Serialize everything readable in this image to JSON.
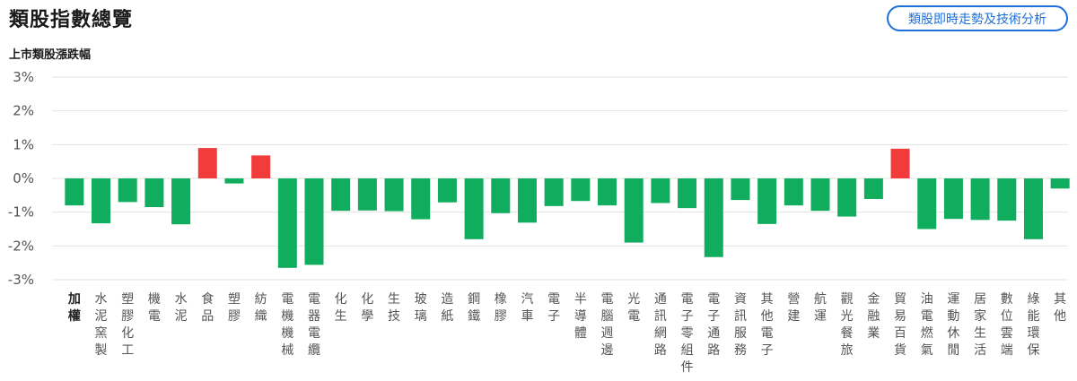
{
  "header": {
    "title": "類股指數總覽",
    "trend_button_label": "類股即時走勢及技術分析"
  },
  "chart_data": {
    "type": "bar",
    "title": "上市類股漲跌幅",
    "ylim": [
      -3,
      3
    ],
    "yticks": [
      "3%",
      "2%",
      "1%",
      "0%",
      "-1%",
      "-2%",
      "-3%"
    ],
    "grid": true,
    "colors": {
      "up": "#f23b3b",
      "down": "#11ad5e"
    },
    "categories": [
      "加權",
      "水泥窯製",
      "塑膠化工",
      "機電",
      "水泥",
      "食品",
      "塑膠",
      "紡織",
      "電機機械",
      "電器電纜",
      "化生",
      "化學",
      "生技",
      "玻璃",
      "造紙",
      "鋼鐵",
      "橡膠",
      "汽車",
      "電子",
      "半導體",
      "電腦週邊",
      "光電",
      "通訊網路",
      "電子零組件",
      "電子通路",
      "資訊服務",
      "其他電子",
      "營建",
      "航運",
      "觀光餐旅",
      "金融業",
      "貿易百貨",
      "油電燃氣",
      "運動休閒",
      "居家生活",
      "數位雲端",
      "綠能環保",
      "其他"
    ],
    "values": [
      -0.8,
      -1.33,
      -0.7,
      -0.85,
      -1.36,
      0.9,
      -0.15,
      0.68,
      -2.65,
      -2.56,
      -0.96,
      -0.95,
      -0.97,
      -1.21,
      -0.71,
      -1.8,
      -1.03,
      -1.31,
      -0.82,
      -0.67,
      -0.8,
      -1.9,
      -0.73,
      -0.88,
      -2.33,
      -0.64,
      -1.35,
      -0.8,
      -0.96,
      -1.13,
      -0.61,
      0.88,
      -1.5,
      -1.2,
      -1.23,
      -1.25,
      -1.8,
      -0.3
    ]
  }
}
